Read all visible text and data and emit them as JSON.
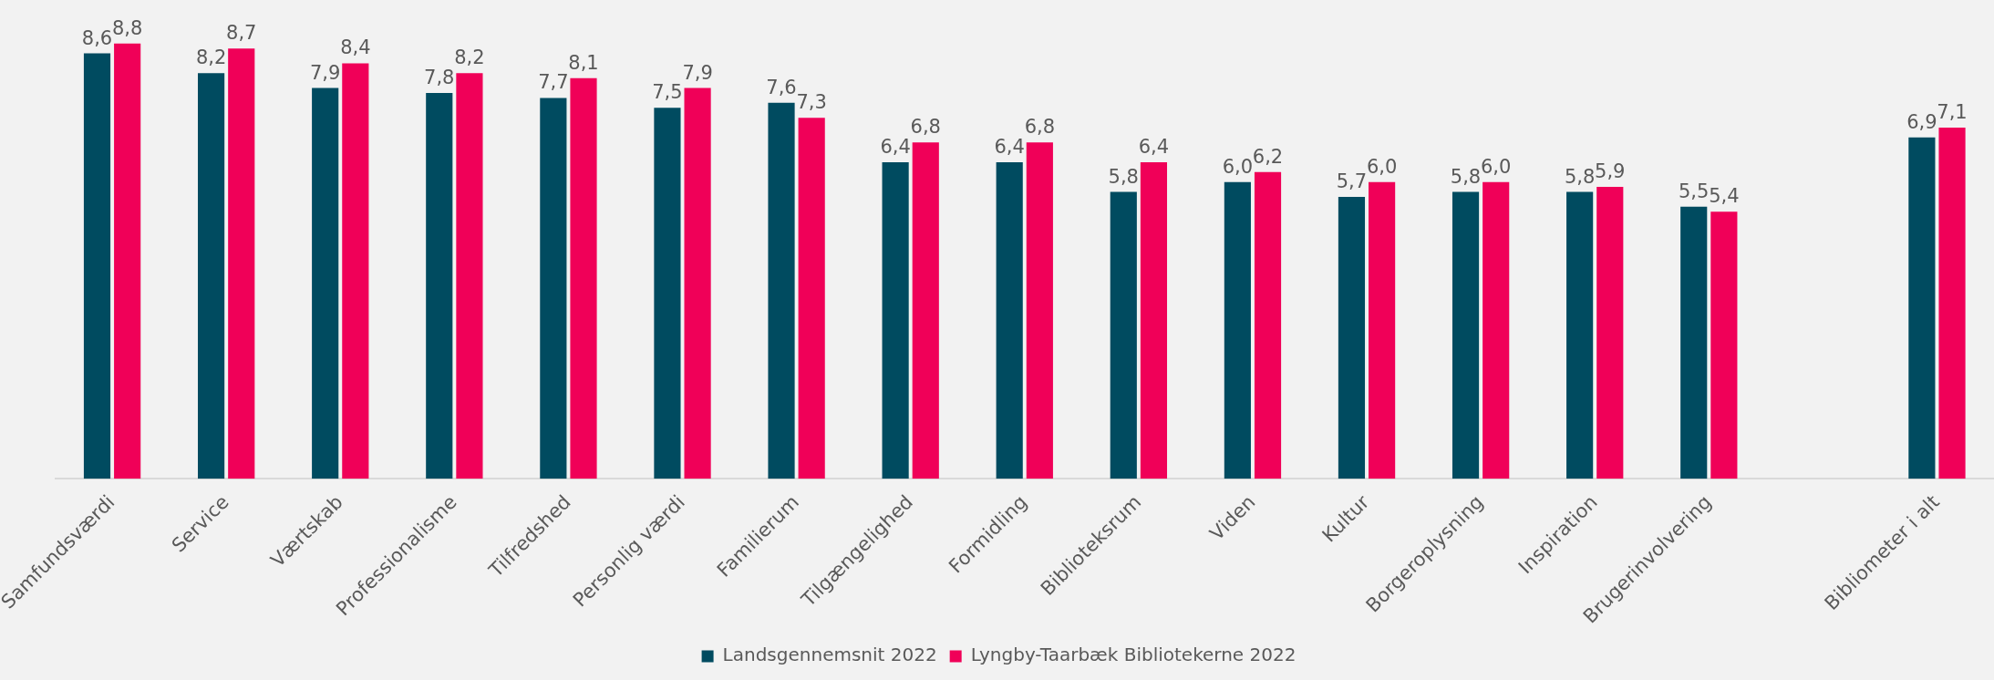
{
  "chart_data": {
    "type": "bar",
    "categories": [
      "Samfundsværdi",
      "Service",
      "Værtskab",
      "Professionalisme",
      "Tilfredshed",
      "Personlig værdi",
      "Familierum",
      "Tilgængelighed",
      "Formidling",
      "Biblioteksrum",
      "Viden",
      "Kultur",
      "Borgeroplysning",
      "Inspiration",
      "Brugerinvolvering",
      null,
      "Bibliometer i alt"
    ],
    "series": [
      {
        "name": "Landsgennemsnit 2022",
        "color": "#004b60",
        "values": [
          8.6,
          8.2,
          7.9,
          7.8,
          7.7,
          7.5,
          7.6,
          6.4,
          6.4,
          5.8,
          6.0,
          5.7,
          5.8,
          5.8,
          5.5,
          null,
          6.9
        ],
        "value_labels": [
          "8,6",
          "8,2",
          "7,9",
          "7,8",
          "7,7",
          "7,5",
          "7,6",
          "6,4",
          "6,4",
          "5,8",
          "6,0",
          "5,7",
          "5,8",
          "5,8",
          "5,5",
          null,
          "6,9"
        ]
      },
      {
        "name": "Lyngby-Taarbæk Bibliotekerne 2022",
        "color": "#f00058",
        "values": [
          8.8,
          8.7,
          8.4,
          8.2,
          8.1,
          7.9,
          7.3,
          6.8,
          6.8,
          6.4,
          6.2,
          6.0,
          6.0,
          5.9,
          5.4,
          null,
          7.1
        ],
        "value_labels": [
          "8,8",
          "8,7",
          "8,4",
          "8,2",
          "8,1",
          "7,9",
          "7,3",
          "6,8",
          "6,8",
          "6,4",
          "6,2",
          "6,0",
          "6,0",
          "5,9",
          "5,4",
          null,
          "7,1"
        ]
      }
    ],
    "legend": "bottom",
    "tick_labels": "x"
  }
}
